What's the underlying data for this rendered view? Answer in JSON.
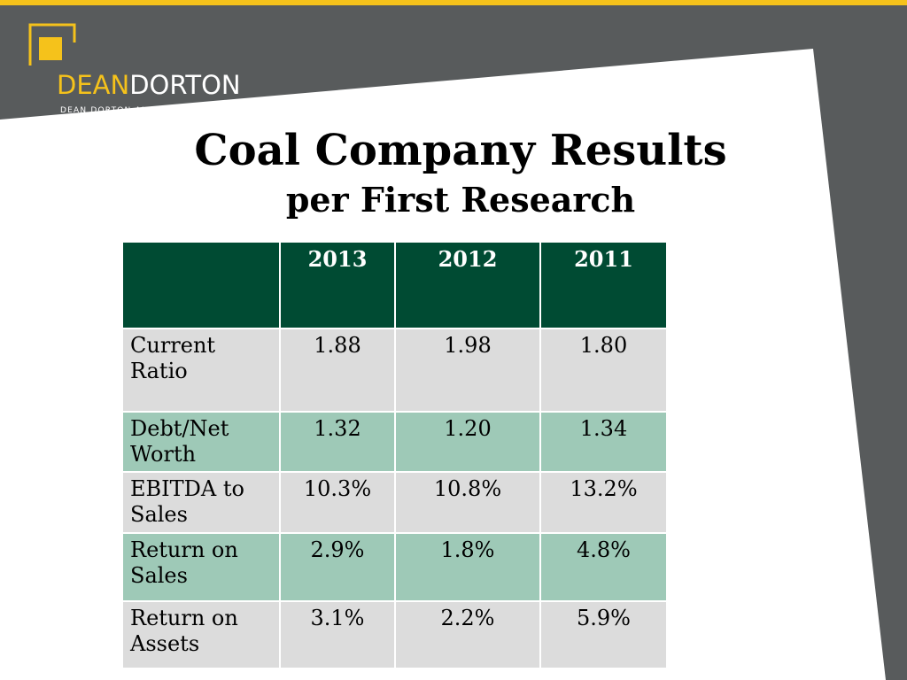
{
  "header": {
    "logo_name_part1": "DEAN",
    "logo_name_part2": "DORTON",
    "logo_subtitle": "DEAN DORTON ALLEN FORD, PLLC"
  },
  "slide": {
    "title": "Coal Company Results",
    "subtitle": "per First Research"
  },
  "table": {
    "columns": [
      "",
      "2013",
      "2012",
      "2011"
    ],
    "rows": [
      {
        "label": "Current Ratio",
        "values": [
          "1.88",
          "1.98",
          "1.80"
        ]
      },
      {
        "label": "Debt/Net Worth",
        "values": [
          "1.32",
          "1.20",
          "1.34"
        ]
      },
      {
        "label": "EBITDA to Sales",
        "values": [
          "10.3%",
          "10.8%",
          "13.2%"
        ]
      },
      {
        "label": "Return on Sales",
        "values": [
          "2.9%",
          "1.8%",
          "4.8%"
        ]
      },
      {
        "label": "Return on Assets",
        "values": [
          "3.1%",
          "2.2%",
          "5.9%"
        ]
      }
    ]
  },
  "colors": {
    "accent_yellow": "#f5c21b",
    "background_gray": "#585b5c",
    "header_green": "#004b33",
    "row_green": "#9ec9b7",
    "row_gray": "#dcdcdc"
  }
}
